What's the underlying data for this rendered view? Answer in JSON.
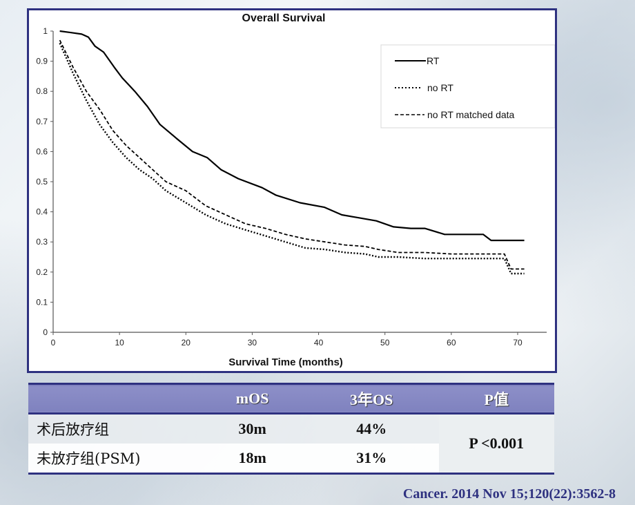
{
  "chart_data": {
    "type": "line",
    "title": "Overall Survival",
    "xlabel": "Survival Time (months)",
    "ylabel": "",
    "xlim": [
      0,
      75
    ],
    "ylim": [
      0,
      1
    ],
    "xticks": [
      0,
      10,
      20,
      30,
      40,
      50,
      60,
      70
    ],
    "yticks": [
      0,
      0.1,
      0.2,
      0.3,
      0.4,
      0.5,
      0.6,
      0.7,
      0.8,
      0.9,
      1
    ],
    "ytick_labels": [
      "0",
      "0.1",
      "0.2",
      "0.3",
      "0.4",
      "0.5",
      "0.6",
      "0.7",
      "0.8",
      "0.9",
      "1"
    ],
    "grid": false,
    "legend_position": "top-right",
    "series": [
      {
        "name": "RT",
        "style": "solid",
        "x": [
          1,
          2.7,
          4.3,
          5.3,
          6.3,
          7.6,
          9.2,
          10.4,
          12.3,
          14.2,
          16.1,
          18.8,
          21,
          23.2,
          25.3,
          27.9,
          31.5,
          33.6,
          37.2,
          40.9,
          43.5,
          46.1,
          48.7,
          51.3,
          53.9,
          56,
          59,
          64.8,
          66,
          71
        ],
        "y": [
          1.0,
          0.995,
          0.99,
          0.98,
          0.95,
          0.93,
          0.88,
          0.845,
          0.8,
          0.75,
          0.69,
          0.64,
          0.6,
          0.58,
          0.54,
          0.51,
          0.48,
          0.455,
          0.43,
          0.415,
          0.39,
          0.38,
          0.37,
          0.35,
          0.345,
          0.345,
          0.325,
          0.325,
          0.305,
          0.305
        ]
      },
      {
        "name": "no RT",
        "style": "dotted",
        "x": [
          1,
          3,
          5,
          7,
          9,
          11,
          13,
          15,
          17,
          20,
          23,
          26,
          29,
          32,
          35,
          38,
          41,
          44,
          47,
          49,
          52,
          56,
          60,
          65,
          68,
          69,
          71
        ],
        "y": [
          0.96,
          0.86,
          0.77,
          0.69,
          0.63,
          0.58,
          0.54,
          0.51,
          0.47,
          0.43,
          0.39,
          0.36,
          0.34,
          0.32,
          0.3,
          0.28,
          0.275,
          0.265,
          0.26,
          0.25,
          0.25,
          0.245,
          0.245,
          0.245,
          0.245,
          0.195,
          0.195
        ]
      },
      {
        "name": "no RT matched data",
        "style": "dashed",
        "x": [
          1,
          3,
          5,
          7,
          9,
          11,
          13,
          15,
          17,
          20,
          23,
          26,
          29,
          32,
          35,
          38,
          41,
          44,
          47,
          49,
          52,
          56,
          60,
          65,
          68,
          69,
          71
        ],
        "y": [
          0.97,
          0.88,
          0.8,
          0.74,
          0.67,
          0.62,
          0.58,
          0.54,
          0.5,
          0.47,
          0.42,
          0.39,
          0.36,
          0.345,
          0.325,
          0.31,
          0.3,
          0.29,
          0.285,
          0.275,
          0.265,
          0.265,
          0.26,
          0.26,
          0.26,
          0.21,
          0.21
        ]
      }
    ]
  },
  "table": {
    "headers": [
      "",
      "mOS",
      "3年OS",
      "P值"
    ],
    "rows": [
      {
        "group": "术后放疗组",
        "mos": "30m",
        "os3y": "44%"
      },
      {
        "group": "未放疗组(PSM)",
        "mos": "18m",
        "os3y": "31%"
      }
    ],
    "p_value": "P <0.001"
  },
  "citation": "Cancer. 2014 Nov 15;120(22):3562-8",
  "colors": {
    "frame": "#2e3180",
    "header_bg": "#8587c4",
    "line": "#000000"
  }
}
